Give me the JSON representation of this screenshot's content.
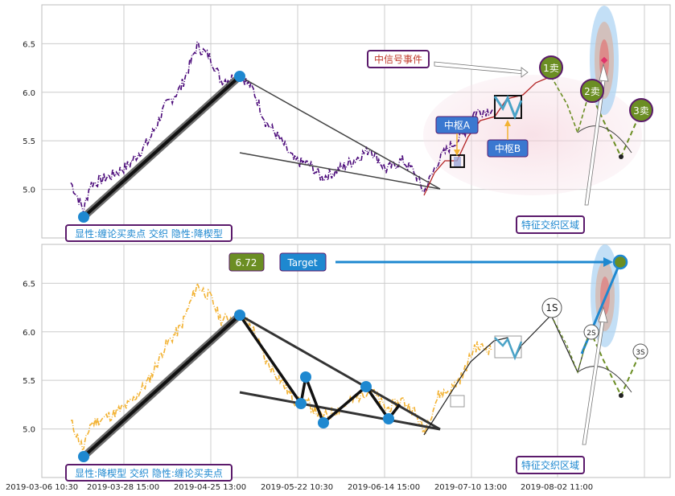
{
  "colors": {
    "purple": "#4b0a7a",
    "gold": "#f2b233",
    "blue": "#1e88d0",
    "olive": "#6b8e23",
    "dark": "#222222",
    "grid": "#cccccc",
    "pinkZone": "#f6d8e0",
    "boxBlue": "#3a78d0"
  },
  "chart_data": [
    {
      "type": "line",
      "panel": "top",
      "ylim": [
        4.5,
        6.9
      ],
      "yticks": [
        "5.0",
        "5.5",
        "6.0",
        "6.5"
      ],
      "grid": true,
      "labels": {
        "signal_event": "中信号事件",
        "pivot_a": "中枢A",
        "pivot_b": "中枢B",
        "sell1": "1卖",
        "sell2": "2卖",
        "sell3": "3卖",
        "feature_zone": "特征交织区域",
        "legend": "显性:缠论买卖点 交织 隐性:降楔型"
      },
      "key_points": [
        {
          "x": "2019-03-07",
          "y": 4.72
        },
        {
          "x": "2019-04-25",
          "y": 6.19
        },
        {
          "x": "2019-07-01",
          "y": 4.95
        },
        {
          "x": "2019-08-06",
          "y": 6.28
        },
        {
          "x": "2019-08-12",
          "y": 5.58
        },
        {
          "x": "2019-08-21",
          "y": 5.35
        }
      ]
    },
    {
      "type": "line",
      "panel": "bottom",
      "ylim": [
        4.5,
        6.9
      ],
      "yticks": [
        "5.0",
        "5.5",
        "6.0",
        "6.5"
      ],
      "grid": true,
      "labels": {
        "price_badge": "6.72",
        "target": "Target",
        "s1": "1S",
        "s2": "2S",
        "s3": "3S",
        "feature_zone": "特征交织区域",
        "legend": "显性:降楔型 交织 隐性:缠论买卖点"
      },
      "key_points": [
        {
          "x": "2019-03-07",
          "y": 4.72
        },
        {
          "x": "2019-04-25",
          "y": 6.18
        },
        {
          "x": "2019-05-20",
          "y": 5.28
        },
        {
          "x": "2019-05-23",
          "y": 5.55
        },
        {
          "x": "2019-05-26",
          "y": 5.08
        },
        {
          "x": "2019-06-08",
          "y": 5.45
        },
        {
          "x": "2019-06-15",
          "y": 5.12
        },
        {
          "x": "2019-08-25",
          "y": 6.72
        }
      ]
    }
  ],
  "xaxis": {
    "ticks": [
      "2019-03-06 10:30",
      "2019-03-28 15:00",
      "2019-04-25 13:00",
      "2019-05-22 10:30",
      "2019-06-14 15:00",
      "2019-07-10 13:00",
      "2019-08-02 11:00"
    ]
  }
}
